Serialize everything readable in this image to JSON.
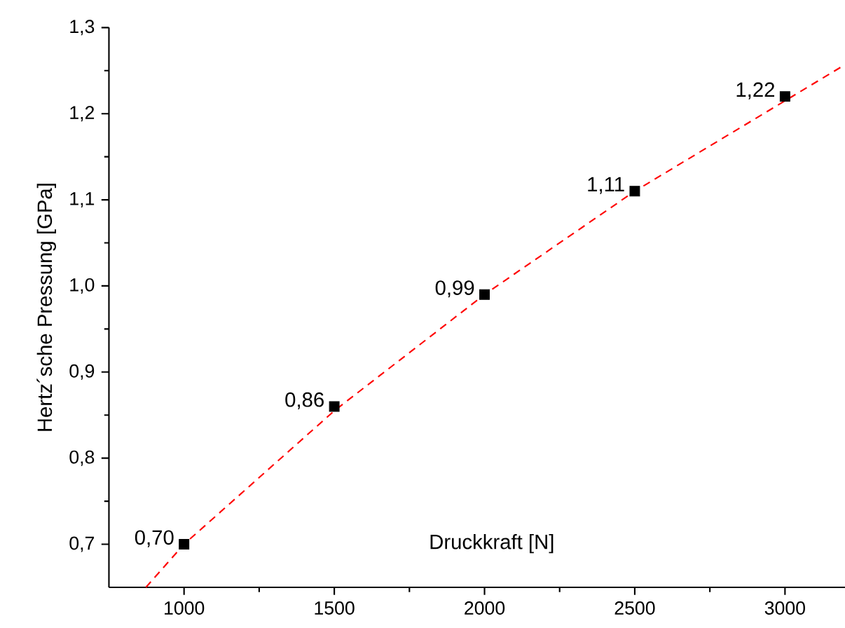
{
  "chart_data": {
    "type": "scatter",
    "xlabel": "Druckkraft [N]",
    "ylabel": "Hertz´sche Pressung [GPa]",
    "x": [
      1000,
      1500,
      2000,
      2500,
      3000
    ],
    "series": [
      {
        "color": "#000000",
        "marker": "square",
        "values": [
          0.7,
          0.86,
          0.99,
          1.11,
          1.22
        ],
        "value_labels": [
          "0,70",
          "0,86",
          "0,99",
          "1,11",
          "1,22"
        ]
      },
      {
        "type": "line",
        "color": "#ff0000",
        "line_style": "dashed",
        "marker": "none",
        "x": [
          873,
          1000,
          1500,
          2000,
          2500,
          3000,
          3200
        ],
        "values": [
          0.65,
          0.7,
          0.855,
          0.99,
          1.11,
          1.215,
          1.257
        ]
      }
    ],
    "xlim": [
      750,
      3200
    ],
    "ylim": [
      0.65,
      1.3
    ],
    "xticks": [
      1000,
      1500,
      2000,
      2500,
      3000
    ],
    "yticks": [
      {
        "value": 0.7,
        "label": "0,7"
      },
      {
        "value": 0.8,
        "label": "0,8"
      },
      {
        "value": 0.9,
        "label": "0,9"
      },
      {
        "value": 1.0,
        "label": "1,0"
      },
      {
        "value": 1.1,
        "label": "1,1"
      },
      {
        "value": 1.2,
        "label": "1,2"
      },
      {
        "value": 1.3,
        "label": "1,3"
      }
    ],
    "grid": false
  }
}
